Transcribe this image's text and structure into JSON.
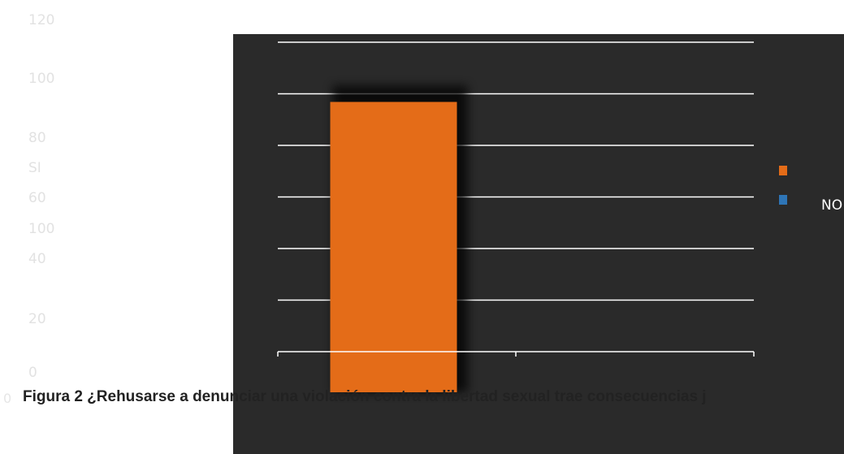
{
  "chart_data": {
    "type": "bar",
    "categories": [
      "SI",
      "NO"
    ],
    "series": [
      {
        "name": "",
        "values": [
          100,
          0
        ],
        "color": "#e46c18"
      },
      {
        "name": "NO",
        "values": [
          0,
          0
        ],
        "color": "#2e75b6"
      }
    ],
    "ylim": [
      0,
      120
    ],
    "yticks": [
      0,
      20,
      40,
      60,
      80,
      100,
      120
    ],
    "bar_value_label": "100",
    "category_label": "SI",
    "grid": true,
    "legend": "right"
  },
  "caption": "Figura 2 ¿Rehusarse a denunciar una violación contra la libertad sexual trae consecuencias j",
  "stray_text": "0",
  "colors": {
    "background": "#2a2a2a",
    "grid": "#ffffff",
    "axis_text": "#e2e2e2"
  }
}
